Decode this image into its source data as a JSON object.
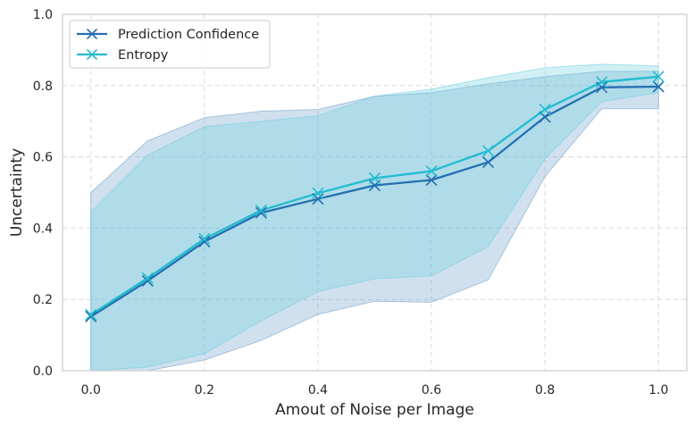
{
  "chart_data": {
    "type": "line",
    "title": "",
    "xlabel": "Amout of Noise per Image",
    "ylabel": "Uncertainty",
    "xlim": [
      -0.05,
      1.05
    ],
    "ylim": [
      0.0,
      1.0
    ],
    "xticks": [
      0.0,
      0.2,
      0.4,
      0.6,
      0.8,
      1.0
    ],
    "xtick_labels": [
      "0.0",
      "0.2",
      "0.4",
      "0.6",
      "0.8",
      "1.0"
    ],
    "yticks": [
      0.0,
      0.2,
      0.4,
      0.6,
      0.8,
      1.0
    ],
    "ytick_labels": [
      "0.0",
      "0.2",
      "0.4",
      "0.6",
      "0.8",
      "1.0"
    ],
    "grid": true,
    "legend_position": "top-left",
    "x": [
      0.0,
      0.1,
      0.2,
      0.3,
      0.4,
      0.5,
      0.6,
      0.7,
      0.8,
      0.9,
      1.0
    ],
    "series": [
      {
        "name": "Prediction Confidence",
        "color": "#2470b1",
        "band_color": "#6c9fcb",
        "marker": "x",
        "values": [
          0.152,
          0.252,
          0.362,
          0.443,
          0.482,
          0.52,
          0.535,
          0.585,
          0.712,
          0.795,
          0.797
        ],
        "upper": [
          0.5,
          0.645,
          0.71,
          0.728,
          0.733,
          0.77,
          0.78,
          0.805,
          0.825,
          0.84,
          0.84
        ],
        "lower": [
          0.0,
          0.0,
          0.03,
          0.085,
          0.158,
          0.195,
          0.192,
          0.255,
          0.545,
          0.735,
          0.735
        ]
      },
      {
        "name": "Entropy",
        "color": "#22bccf",
        "band_color": "#6ccfdf",
        "marker": "x",
        "values": [
          0.157,
          0.26,
          0.37,
          0.45,
          0.498,
          0.54,
          0.56,
          0.617,
          0.733,
          0.81,
          0.825
        ],
        "upper": [
          0.445,
          0.605,
          0.685,
          0.7,
          0.715,
          0.77,
          0.79,
          0.822,
          0.85,
          0.86,
          0.855
        ],
        "lower": [
          0.0,
          0.01,
          0.048,
          0.14,
          0.222,
          0.258,
          0.266,
          0.348,
          0.595,
          0.755,
          0.78
        ]
      }
    ]
  }
}
